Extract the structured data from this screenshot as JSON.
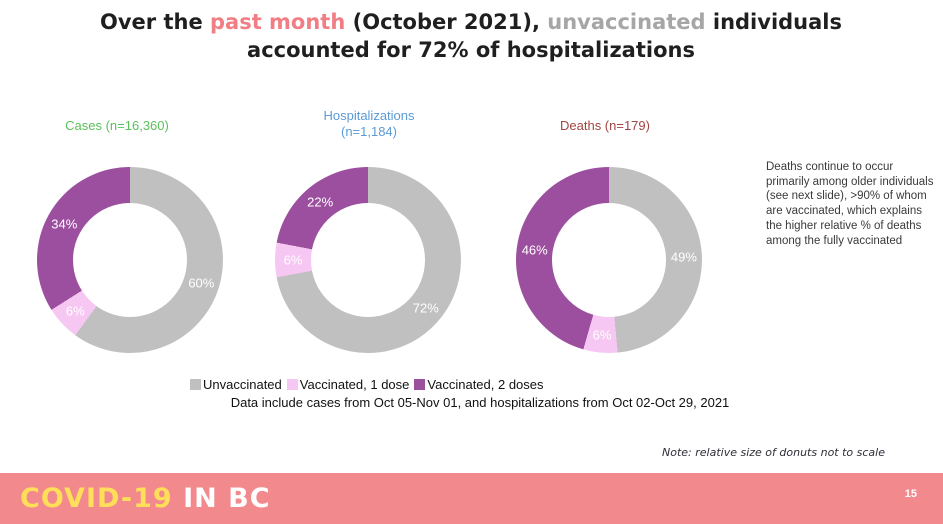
{
  "colors": {
    "unvaccinated": "#C1C0C1",
    "vaccinated_1dose": "#F6C7F2",
    "vaccinated_2doses": "#9B4F9E",
    "title_accent_pink": "#F17E84",
    "title_accent_gray": "#A6A6A6",
    "cases_label_green": "#5BC05B",
    "hospitalizations_label_blue": "#5B9BD5",
    "deaths_label_red": "#A24442",
    "banner_background": "#F2898D",
    "banner_yellow": "#FFDE59"
  },
  "title": {
    "part1": "Over the ",
    "part2": "past month",
    "part3": " (October 2021), ",
    "part4": "unvaccinated",
    "part5": " individuals",
    "part6": "accounted for 72% of hospitalizations"
  },
  "chart_data": [
    {
      "type": "pie",
      "donut": true,
      "title": "Cases (n=16,360)",
      "title_color": "#5BC05B",
      "labels": [
        "Unvaccinated",
        "Vaccinated, 1 dose",
        "Vaccinated, 2 doses"
      ],
      "values": [
        60,
        6,
        34
      ],
      "unit": "%",
      "slice_colors": [
        "#C1C0C1",
        "#F6C7F2",
        "#9B4F9E"
      ]
    },
    {
      "type": "pie",
      "donut": true,
      "title": "Hospitalizations\n(n=1,184)",
      "title_color": "#5B9BD5",
      "labels": [
        "Unvaccinated",
        "Vaccinated, 1 dose",
        "Vaccinated, 2 doses"
      ],
      "values": [
        72,
        6,
        22
      ],
      "unit": "%",
      "slice_colors": [
        "#C1C0C1",
        "#F6C7F2",
        "#9B4F9E"
      ]
    },
    {
      "type": "pie",
      "donut": true,
      "title": "Deaths (n=179)",
      "title_color": "#A24442",
      "labels": [
        "Unvaccinated",
        "Vaccinated, 1 dose",
        "Vaccinated, 2 doses"
      ],
      "values": [
        49,
        6,
        46
      ],
      "unit": "%",
      "slice_colors": [
        "#C1C0C1",
        "#F6C7F2",
        "#9B4F9E"
      ]
    }
  ],
  "legend": {
    "items": [
      {
        "label": "Unvaccinated",
        "color": "#C1C0C1"
      },
      {
        "label": "Vaccinated, 1 dose",
        "color": "#F6C7F2"
      },
      {
        "label": "Vaccinated, 2 doses",
        "color": "#9B4F9E"
      }
    ]
  },
  "notes": {
    "data_note": "Data include cases from Oct 05-Nov 01, and hospitalizations from Oct 02-Oct 29, 2021",
    "side_note": "Deaths continue to occur primarily among older individuals (see next slide), >90% of whom are vaccinated, which explains the higher relative % of deaths among the fully vaccinated",
    "scale_note": "Note: relative size of donuts not to scale"
  },
  "footer": {
    "brand_covid": "COVID-19",
    "brand_region": "IN BC",
    "page_number": "15"
  }
}
